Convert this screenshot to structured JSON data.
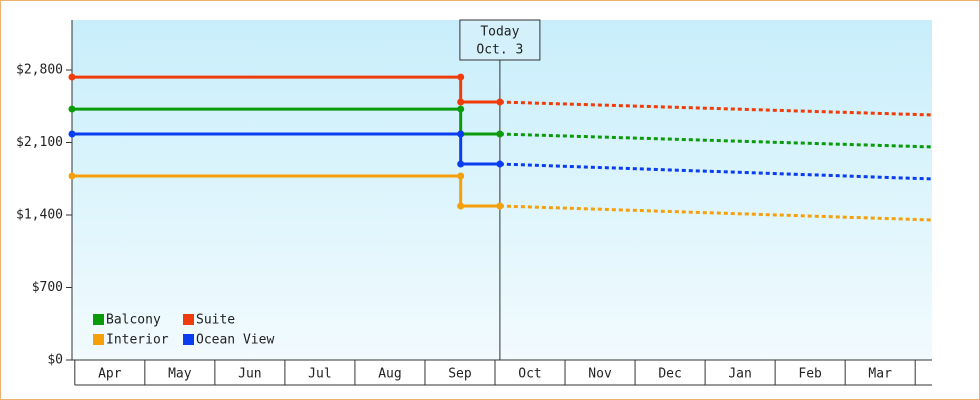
{
  "chart_data": {
    "type": "line",
    "x": [
      -0.04,
      5.51,
      5.51,
      6.07,
      12.24
    ],
    "xlim": [
      -0.04,
      12.24
    ],
    "categories": [
      "Apr",
      "May",
      "Jun",
      "Jul",
      "Aug",
      "Sep",
      "Oct",
      "Nov",
      "Dec",
      "Jan",
      "Feb",
      "Mar"
    ],
    "ylim": [
      0,
      3283
    ],
    "yticks": [
      {
        "value": 0,
        "label": "$0"
      },
      {
        "value": 700,
        "label": "$700"
      },
      {
        "value": 1400,
        "label": "$1,400"
      },
      {
        "value": 2100,
        "label": "$2,100"
      },
      {
        "value": 2800,
        "label": "$2,800"
      }
    ],
    "today": {
      "x": 6.07,
      "title": "Today",
      "date": "Oct. 3"
    },
    "series": [
      {
        "name": "Balcony",
        "color": "#0a9a0a",
        "values": [
          2423,
          2423,
          2182,
          2182,
          2057
        ]
      },
      {
        "name": "Suite",
        "color": "#f03c0a",
        "values": [
          2732,
          2732,
          2491,
          2491,
          2366
        ]
      },
      {
        "name": "Interior",
        "color": "#f5a00a",
        "values": [
          1777,
          1777,
          1487,
          1487,
          1352
        ]
      },
      {
        "name": "Ocean View",
        "color": "#0a3cf0",
        "values": [
          2182,
          2182,
          1892,
          1892,
          1748
        ]
      }
    ]
  }
}
